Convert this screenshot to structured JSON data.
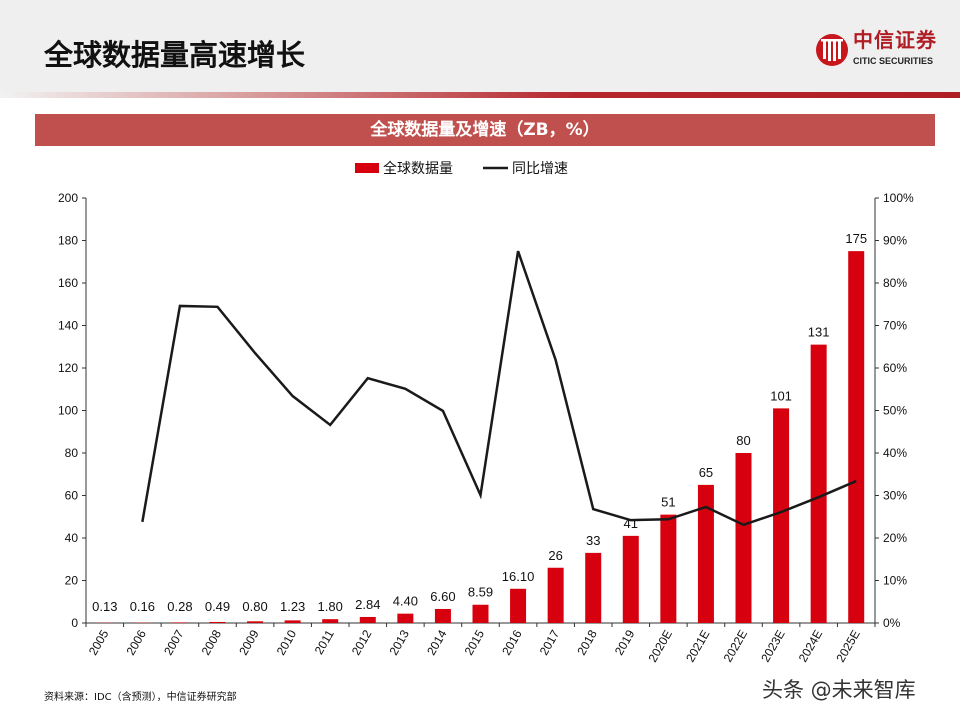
{
  "header": {
    "title": "全球数据量高速增长",
    "logo_cn": "中信证券",
    "logo_en": "CITIC SECURITIES"
  },
  "banner": {
    "title": "全球数据量及增速（ZB，%）"
  },
  "footer": {
    "source": "资料来源：IDC（含预测），中信证券研究部",
    "watermark": "头条 @未来智库"
  },
  "colors": {
    "bar": "#d7000f",
    "line": "#1a1a1a",
    "banner": "#c0504d",
    "brand": "#b01e25"
  },
  "chart_data": {
    "type": "bar+line",
    "categories": [
      "2005",
      "2006",
      "2007",
      "2008",
      "2009",
      "2010",
      "2011",
      "2012",
      "2013",
      "2014",
      "2015",
      "2016",
      "2017",
      "2018",
      "2019",
      "2020E",
      "2021E",
      "2022E",
      "2023E",
      "2024E",
      "2025E"
    ],
    "series": [
      {
        "name": "全球数据量",
        "type": "bar",
        "axis": "left",
        "values": [
          0.13,
          0.16,
          0.28,
          0.49,
          0.8,
          1.23,
          1.8,
          2.84,
          4.4,
          6.6,
          8.59,
          16.1,
          26,
          33,
          41,
          51,
          65,
          80,
          101,
          131,
          175
        ],
        "labels": [
          "0.13",
          "0.16",
          "0.28",
          "0.49",
          "0.80",
          "1.23",
          "1.80",
          "2.84",
          "4.40",
          "6.60",
          "8.59",
          "16.10",
          "26",
          "33",
          "41",
          "51",
          "65",
          "80",
          "101",
          "131",
          "175"
        ]
      },
      {
        "name": "同比增速",
        "type": "line",
        "axis": "right",
        "values": [
          null,
          23.8,
          74.6,
          74.4,
          63.5,
          53.4,
          46.6,
          57.6,
          55.1,
          49.9,
          30.1,
          87.5,
          61.9,
          26.8,
          24.2,
          24.4,
          27.3,
          23.1,
          26.1,
          29.6,
          33.4
        ]
      }
    ],
    "left_axis": {
      "range": [
        0,
        200
      ],
      "ticks": [
        "0",
        "20",
        "40",
        "60",
        "80",
        "100",
        "120",
        "140",
        "160",
        "180",
        "200"
      ]
    },
    "right_axis": {
      "range": [
        0,
        100
      ],
      "ticks": [
        "0%",
        "10%",
        "20%",
        "30%",
        "40%",
        "50%",
        "60%",
        "70%",
        "80%",
        "90%",
        "100%"
      ]
    },
    "legend_placement": "top-center",
    "grid": false
  }
}
